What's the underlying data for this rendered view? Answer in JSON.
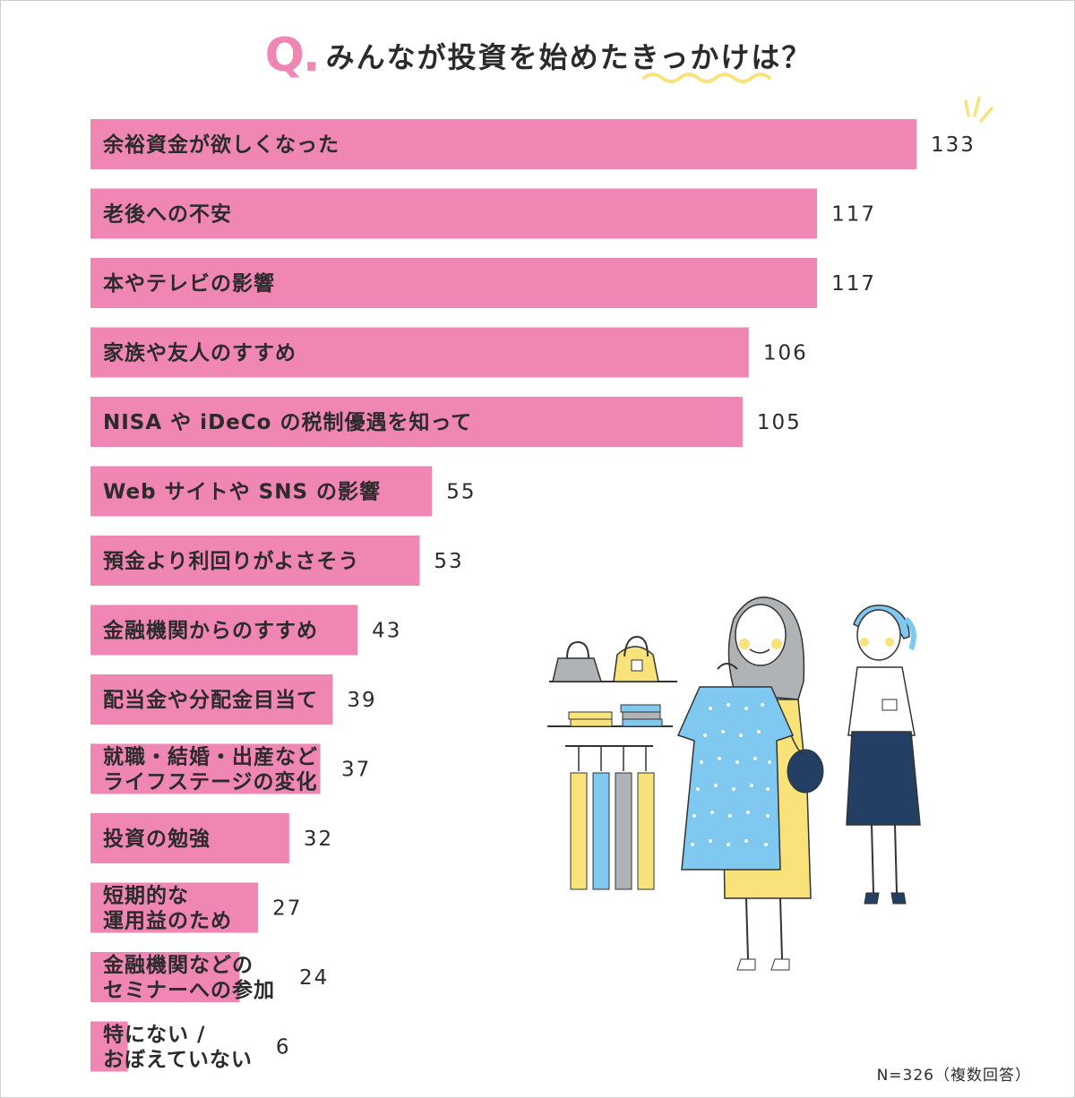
{
  "header": {
    "q_mark": "Q.",
    "title": "みんなが投資を始めたきっかけは？"
  },
  "note": "N=326（複数回答）",
  "colors": {
    "bar": "#ef86b4",
    "accent_yellow": "#f9e27a",
    "accent_blue": "#7fc8f0",
    "navy": "#233f63"
  },
  "chart_data": {
    "type": "bar",
    "orientation": "horizontal",
    "title": "みんなが投資を始めたきっかけは？",
    "categories": [
      [
        "余裕資金が欲しくなった"
      ],
      [
        "老後への不安"
      ],
      [
        "本やテレビの影響"
      ],
      [
        "家族や友人のすすめ"
      ],
      [
        "NISA や iDeCo の税制優遇を知って"
      ],
      [
        "Web サイトや SNS の影響"
      ],
      [
        "預金より利回りがよさそう"
      ],
      [
        "金融機関からのすすめ"
      ],
      [
        "配当金や分配金目当て"
      ],
      [
        "就職・結婚・出産など",
        "ライフステージの変化"
      ],
      [
        "投資の勉強"
      ],
      [
        "短期的な",
        "運用益のため"
      ],
      [
        "金融機関などの",
        "セミナーへの参加"
      ],
      [
        "特にない /",
        "おぼえていない"
      ]
    ],
    "values": [
      133,
      117,
      117,
      106,
      105,
      55,
      53,
      43,
      39,
      37,
      32,
      27,
      24,
      6
    ],
    "xlim": [
      0,
      133
    ],
    "grid": false,
    "legend": "none"
  },
  "illustration": {
    "icons": [
      "bag-icon",
      "shelf-icon",
      "hanger-icon",
      "woman-shopper",
      "shop-assistant"
    ]
  }
}
